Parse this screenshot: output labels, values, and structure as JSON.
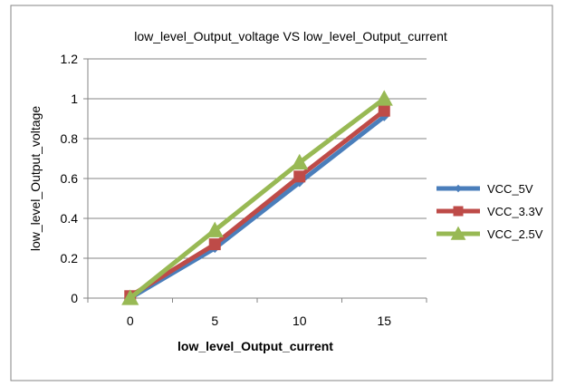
{
  "chart_data": {
    "type": "line",
    "title": "low_level_Output_voltage VS low_level_Output_current",
    "xlabel": "low_level_Output_current",
    "ylabel": "low_level_Output_voltage",
    "categories": [
      "0",
      "5",
      "10",
      "15"
    ],
    "x": [
      0,
      5,
      10,
      15
    ],
    "ylim": [
      0,
      1.2
    ],
    "yticks": [
      "0",
      "0.2",
      "0.4",
      "0.6",
      "0.8",
      "1",
      "1.2"
    ],
    "grid": true,
    "legend": "right",
    "series": [
      {
        "name": "VCC_5V",
        "values": [
          0,
          0.25,
          0.58,
          0.91
        ],
        "color": "#4a7ebb",
        "marker": "diamond"
      },
      {
        "name": "VCC_3.3V",
        "values": [
          0.01,
          0.27,
          0.61,
          0.94
        ],
        "color": "#be4b48",
        "marker": "square"
      },
      {
        "name": "VCC_2.5V",
        "values": [
          0,
          0.34,
          0.68,
          1.0
        ],
        "color": "#98b954",
        "marker": "triangle"
      }
    ]
  }
}
